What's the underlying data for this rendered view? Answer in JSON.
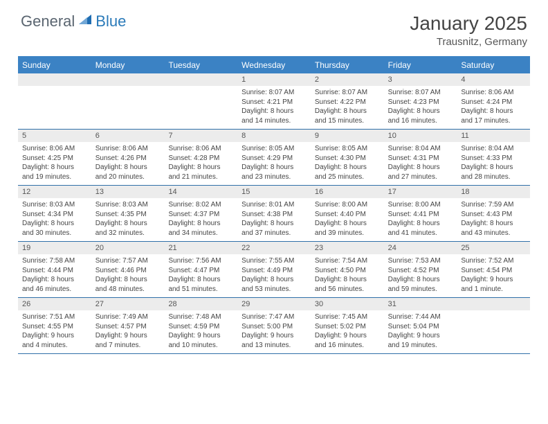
{
  "brand": {
    "general": "General",
    "blue": "Blue"
  },
  "title": "January 2025",
  "location": "Trausnitz, Germany",
  "colors": {
    "header_bar": "#3b82c4",
    "daynum_bg": "#ececec",
    "border": "#2f6fa8",
    "logo_blue": "#2a7ab9",
    "logo_gray": "#5a6570",
    "text": "#444444"
  },
  "day_headers": [
    "Sunday",
    "Monday",
    "Tuesday",
    "Wednesday",
    "Thursday",
    "Friday",
    "Saturday"
  ],
  "weeks": [
    [
      {
        "n": "",
        "sr": "",
        "ss": "",
        "dl": ""
      },
      {
        "n": "",
        "sr": "",
        "ss": "",
        "dl": ""
      },
      {
        "n": "",
        "sr": "",
        "ss": "",
        "dl": ""
      },
      {
        "n": "1",
        "sr": "Sunrise: 8:07 AM",
        "ss": "Sunset: 4:21 PM",
        "dl": "Daylight: 8 hours and 14 minutes."
      },
      {
        "n": "2",
        "sr": "Sunrise: 8:07 AM",
        "ss": "Sunset: 4:22 PM",
        "dl": "Daylight: 8 hours and 15 minutes."
      },
      {
        "n": "3",
        "sr": "Sunrise: 8:07 AM",
        "ss": "Sunset: 4:23 PM",
        "dl": "Daylight: 8 hours and 16 minutes."
      },
      {
        "n": "4",
        "sr": "Sunrise: 8:06 AM",
        "ss": "Sunset: 4:24 PM",
        "dl": "Daylight: 8 hours and 17 minutes."
      }
    ],
    [
      {
        "n": "5",
        "sr": "Sunrise: 8:06 AM",
        "ss": "Sunset: 4:25 PM",
        "dl": "Daylight: 8 hours and 19 minutes."
      },
      {
        "n": "6",
        "sr": "Sunrise: 8:06 AM",
        "ss": "Sunset: 4:26 PM",
        "dl": "Daylight: 8 hours and 20 minutes."
      },
      {
        "n": "7",
        "sr": "Sunrise: 8:06 AM",
        "ss": "Sunset: 4:28 PM",
        "dl": "Daylight: 8 hours and 21 minutes."
      },
      {
        "n": "8",
        "sr": "Sunrise: 8:05 AM",
        "ss": "Sunset: 4:29 PM",
        "dl": "Daylight: 8 hours and 23 minutes."
      },
      {
        "n": "9",
        "sr": "Sunrise: 8:05 AM",
        "ss": "Sunset: 4:30 PM",
        "dl": "Daylight: 8 hours and 25 minutes."
      },
      {
        "n": "10",
        "sr": "Sunrise: 8:04 AM",
        "ss": "Sunset: 4:31 PM",
        "dl": "Daylight: 8 hours and 27 minutes."
      },
      {
        "n": "11",
        "sr": "Sunrise: 8:04 AM",
        "ss": "Sunset: 4:33 PM",
        "dl": "Daylight: 8 hours and 28 minutes."
      }
    ],
    [
      {
        "n": "12",
        "sr": "Sunrise: 8:03 AM",
        "ss": "Sunset: 4:34 PM",
        "dl": "Daylight: 8 hours and 30 minutes."
      },
      {
        "n": "13",
        "sr": "Sunrise: 8:03 AM",
        "ss": "Sunset: 4:35 PM",
        "dl": "Daylight: 8 hours and 32 minutes."
      },
      {
        "n": "14",
        "sr": "Sunrise: 8:02 AM",
        "ss": "Sunset: 4:37 PM",
        "dl": "Daylight: 8 hours and 34 minutes."
      },
      {
        "n": "15",
        "sr": "Sunrise: 8:01 AM",
        "ss": "Sunset: 4:38 PM",
        "dl": "Daylight: 8 hours and 37 minutes."
      },
      {
        "n": "16",
        "sr": "Sunrise: 8:00 AM",
        "ss": "Sunset: 4:40 PM",
        "dl": "Daylight: 8 hours and 39 minutes."
      },
      {
        "n": "17",
        "sr": "Sunrise: 8:00 AM",
        "ss": "Sunset: 4:41 PM",
        "dl": "Daylight: 8 hours and 41 minutes."
      },
      {
        "n": "18",
        "sr": "Sunrise: 7:59 AM",
        "ss": "Sunset: 4:43 PM",
        "dl": "Daylight: 8 hours and 43 minutes."
      }
    ],
    [
      {
        "n": "19",
        "sr": "Sunrise: 7:58 AM",
        "ss": "Sunset: 4:44 PM",
        "dl": "Daylight: 8 hours and 46 minutes."
      },
      {
        "n": "20",
        "sr": "Sunrise: 7:57 AM",
        "ss": "Sunset: 4:46 PM",
        "dl": "Daylight: 8 hours and 48 minutes."
      },
      {
        "n": "21",
        "sr": "Sunrise: 7:56 AM",
        "ss": "Sunset: 4:47 PM",
        "dl": "Daylight: 8 hours and 51 minutes."
      },
      {
        "n": "22",
        "sr": "Sunrise: 7:55 AM",
        "ss": "Sunset: 4:49 PM",
        "dl": "Daylight: 8 hours and 53 minutes."
      },
      {
        "n": "23",
        "sr": "Sunrise: 7:54 AM",
        "ss": "Sunset: 4:50 PM",
        "dl": "Daylight: 8 hours and 56 minutes."
      },
      {
        "n": "24",
        "sr": "Sunrise: 7:53 AM",
        "ss": "Sunset: 4:52 PM",
        "dl": "Daylight: 8 hours and 59 minutes."
      },
      {
        "n": "25",
        "sr": "Sunrise: 7:52 AM",
        "ss": "Sunset: 4:54 PM",
        "dl": "Daylight: 9 hours and 1 minute."
      }
    ],
    [
      {
        "n": "26",
        "sr": "Sunrise: 7:51 AM",
        "ss": "Sunset: 4:55 PM",
        "dl": "Daylight: 9 hours and 4 minutes."
      },
      {
        "n": "27",
        "sr": "Sunrise: 7:49 AM",
        "ss": "Sunset: 4:57 PM",
        "dl": "Daylight: 9 hours and 7 minutes."
      },
      {
        "n": "28",
        "sr": "Sunrise: 7:48 AM",
        "ss": "Sunset: 4:59 PM",
        "dl": "Daylight: 9 hours and 10 minutes."
      },
      {
        "n": "29",
        "sr": "Sunrise: 7:47 AM",
        "ss": "Sunset: 5:00 PM",
        "dl": "Daylight: 9 hours and 13 minutes."
      },
      {
        "n": "30",
        "sr": "Sunrise: 7:45 AM",
        "ss": "Sunset: 5:02 PM",
        "dl": "Daylight: 9 hours and 16 minutes."
      },
      {
        "n": "31",
        "sr": "Sunrise: 7:44 AM",
        "ss": "Sunset: 5:04 PM",
        "dl": "Daylight: 9 hours and 19 minutes."
      },
      {
        "n": "",
        "sr": "",
        "ss": "",
        "dl": ""
      }
    ]
  ]
}
